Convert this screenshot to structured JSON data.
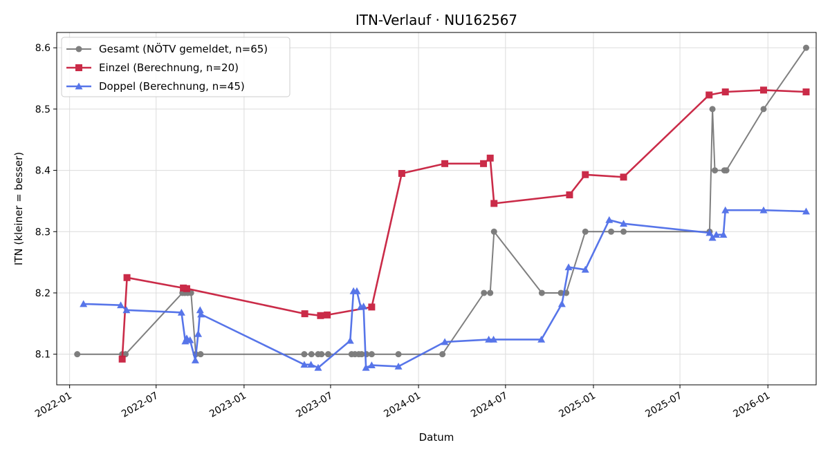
{
  "chart_data": {
    "type": "line",
    "title": "ITN-Verlauf · NU162567",
    "xlabel": "Datum",
    "ylabel": "ITN  (kleiner = besser)",
    "xlim": [
      "2021-12-05",
      "2026-04-12"
    ],
    "ylim": [
      8.05,
      8.625
    ],
    "x_ticks": [
      "2022-01-01",
      "2022-07-01",
      "2023-01-01",
      "2023-07-01",
      "2024-01-01",
      "2024-07-01",
      "2025-01-01",
      "2025-07-01",
      "2026-01-01"
    ],
    "x_tick_labels": [
      "2022-01",
      "2022-07",
      "2023-01",
      "2023-07",
      "2024-01",
      "2024-07",
      "2025-01",
      "2025-07",
      "2026-01"
    ],
    "y_ticks": [
      8.1,
      8.2,
      8.3,
      8.4,
      8.5,
      8.6
    ],
    "y_tick_labels": [
      "8.1",
      "8.2",
      "8.3",
      "8.4",
      "8.5",
      "8.6"
    ],
    "grid": true,
    "legend": "top-left",
    "series": [
      {
        "name": "Gesamt (NÖTV gemeldet, n=65)",
        "color": "#555555",
        "marker": "circle",
        "points": [
          [
            "2022-01-17",
            8.1
          ],
          [
            "2022-04-21",
            8.1
          ],
          [
            "2022-04-28",
            8.1
          ],
          [
            "2022-08-25",
            8.2
          ],
          [
            "2022-08-30",
            8.2
          ],
          [
            "2022-09-05",
            8.2
          ],
          [
            "2022-09-12",
            8.2
          ],
          [
            "2022-09-22",
            8.1
          ],
          [
            "2022-10-02",
            8.1
          ],
          [
            "2023-05-07",
            8.1
          ],
          [
            "2023-05-22",
            8.1
          ],
          [
            "2023-06-05",
            8.1
          ],
          [
            "2023-06-12",
            8.1
          ],
          [
            "2023-06-26",
            8.1
          ],
          [
            "2023-08-14",
            8.1
          ],
          [
            "2023-08-21",
            8.1
          ],
          [
            "2023-08-29",
            8.1
          ],
          [
            "2023-09-04",
            8.1
          ],
          [
            "2023-09-14",
            8.1
          ],
          [
            "2023-09-25",
            8.1
          ],
          [
            "2023-11-20",
            8.1
          ],
          [
            "2024-02-20",
            8.1
          ],
          [
            "2024-05-17",
            8.2
          ],
          [
            "2024-05-30",
            8.2
          ],
          [
            "2024-06-07",
            8.3
          ],
          [
            "2024-09-15",
            8.2
          ],
          [
            "2024-10-25",
            8.2
          ],
          [
            "2024-11-05",
            8.2
          ],
          [
            "2024-12-15",
            8.3
          ],
          [
            "2025-02-07",
            8.3
          ],
          [
            "2025-03-05",
            8.3
          ],
          [
            "2025-09-01",
            8.3
          ],
          [
            "2025-09-07",
            8.5
          ],
          [
            "2025-09-12",
            8.4
          ],
          [
            "2025-10-02",
            8.4
          ],
          [
            "2025-10-06",
            8.4
          ],
          [
            "2025-12-23",
            8.5
          ],
          [
            "2026-03-22",
            8.6
          ]
        ]
      },
      {
        "name": "Einzel (Berechnung, n=20)",
        "color": "#c8203f",
        "marker": "square",
        "points": [
          [
            "2022-04-21",
            8.092
          ],
          [
            "2022-05-01",
            8.225
          ],
          [
            "2022-08-27",
            8.208
          ],
          [
            "2022-09-03",
            8.207
          ],
          [
            "2023-05-08",
            8.166
          ],
          [
            "2023-06-10",
            8.163
          ],
          [
            "2023-06-24",
            8.164
          ],
          [
            "2023-09-25",
            8.177
          ],
          [
            "2023-11-27",
            8.395
          ],
          [
            "2024-02-25",
            8.411
          ],
          [
            "2024-05-16",
            8.411
          ],
          [
            "2024-05-30",
            8.42
          ],
          [
            "2024-06-07",
            8.346
          ],
          [
            "2024-11-12",
            8.36
          ],
          [
            "2024-12-15",
            8.393
          ],
          [
            "2025-03-05",
            8.389
          ],
          [
            "2025-08-31",
            8.523
          ],
          [
            "2025-10-04",
            8.528
          ],
          [
            "2025-12-23",
            8.531
          ],
          [
            "2026-03-22",
            8.528
          ]
        ]
      },
      {
        "name": "Doppel (Berechnung, n=45)",
        "color": "#4f6ee8",
        "marker": "triangle",
        "points": [
          [
            "2022-01-30",
            8.182
          ],
          [
            "2022-04-18",
            8.18
          ],
          [
            "2022-04-30",
            8.172
          ],
          [
            "2022-08-23",
            8.168
          ],
          [
            "2022-08-31",
            8.121
          ],
          [
            "2022-09-03",
            8.126
          ],
          [
            "2022-09-10",
            8.123
          ],
          [
            "2022-09-21",
            8.09
          ],
          [
            "2022-09-27",
            8.133
          ],
          [
            "2022-10-01",
            8.172
          ],
          [
            "2022-10-03",
            8.165
          ],
          [
            "2023-05-07",
            8.083
          ],
          [
            "2023-05-21",
            8.083
          ],
          [
            "2023-06-05",
            8.078
          ],
          [
            "2023-08-11",
            8.122
          ],
          [
            "2023-08-18",
            8.203
          ],
          [
            "2023-08-25",
            8.203
          ],
          [
            "2023-09-02",
            8.177
          ],
          [
            "2023-09-08",
            8.178
          ],
          [
            "2023-09-13",
            8.078
          ],
          [
            "2023-09-25",
            8.082
          ],
          [
            "2023-11-20",
            8.08
          ],
          [
            "2024-02-25",
            8.12
          ],
          [
            "2024-05-27",
            8.124
          ],
          [
            "2024-06-06",
            8.124
          ],
          [
            "2024-09-14",
            8.124
          ],
          [
            "2024-10-27",
            8.182
          ],
          [
            "2024-11-10",
            8.242
          ],
          [
            "2024-12-15",
            8.238
          ],
          [
            "2025-02-03",
            8.319
          ],
          [
            "2025-03-05",
            8.313
          ],
          [
            "2025-09-01",
            8.298
          ],
          [
            "2025-09-07",
            8.29
          ],
          [
            "2025-09-15",
            8.295
          ],
          [
            "2025-09-30",
            8.295
          ],
          [
            "2025-10-04",
            8.335
          ],
          [
            "2025-12-23",
            8.335
          ],
          [
            "2026-03-22",
            8.333
          ]
        ]
      }
    ]
  }
}
